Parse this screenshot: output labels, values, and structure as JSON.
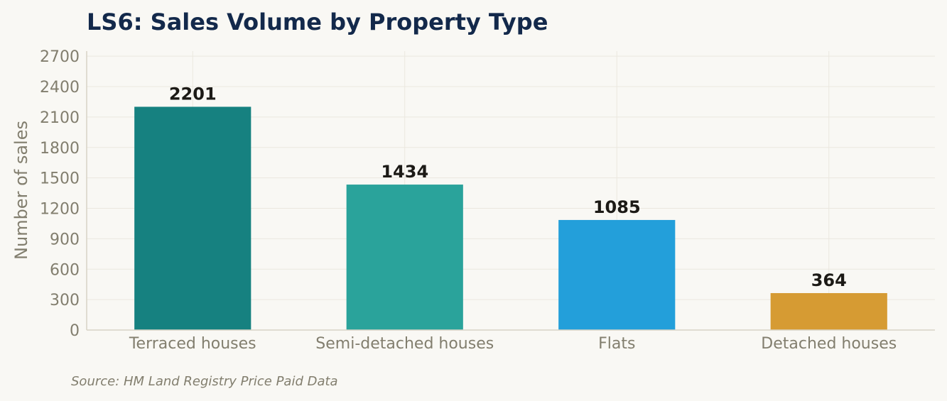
{
  "chart_data": {
    "type": "bar",
    "title": "LS6: Sales Volume by Property Type",
    "xlabel": "",
    "ylabel": "Number of sales",
    "categories": [
      "Terraced houses",
      "Semi-detached houses",
      "Flats",
      "Detached houses"
    ],
    "values": [
      2201,
      1434,
      1085,
      364
    ],
    "value_labels": [
      "2201",
      "1434",
      "1085",
      "364"
    ],
    "colors": [
      "#168180",
      "#2aa39b",
      "#239fda",
      "#d69b33"
    ],
    "ylim": [
      0,
      2750
    ],
    "yticks": [
      0,
      300,
      600,
      900,
      1200,
      1500,
      1800,
      2100,
      2400,
      2700
    ],
    "ytick_labels": [
      "0",
      "300",
      "600",
      "900",
      "1200",
      "1500",
      "1800",
      "2100",
      "2400",
      "2700"
    ],
    "grid": true
  },
  "footer": {
    "source": "Source: HM Land Registry Price Paid Data"
  }
}
